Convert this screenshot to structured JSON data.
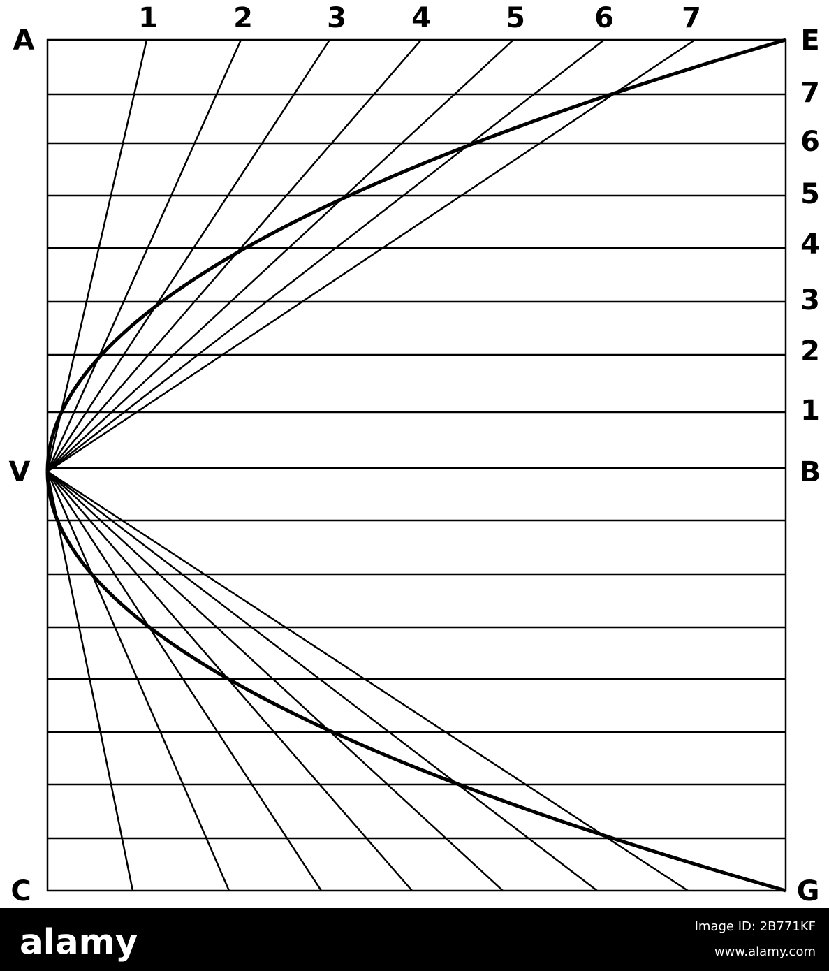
{
  "corner_labels": {
    "a": "A",
    "e": "E",
    "c": "C",
    "g": "G",
    "v": "V",
    "b": "B"
  },
  "top_divisions": [
    "1",
    "2",
    "3",
    "4",
    "5",
    "6",
    "7"
  ],
  "right_divisions": [
    "7",
    "6",
    "5",
    "4",
    "3",
    "2",
    "1"
  ],
  "watermark": {
    "brand": "alamy",
    "image_id": "Image ID: 2B771KF",
    "url": "www.alamy.com"
  }
}
